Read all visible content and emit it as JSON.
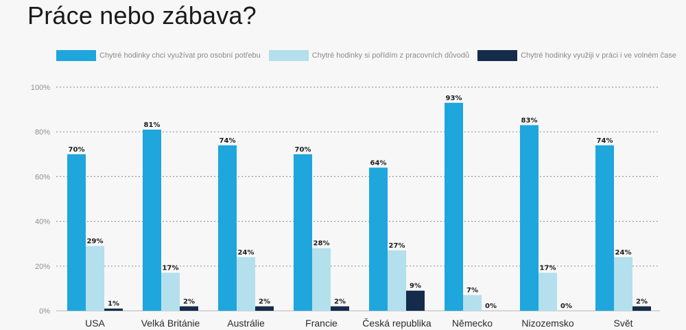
{
  "chart_data": {
    "type": "bar",
    "title": "Práce nebo zábava?",
    "categories": [
      "USA",
      "Velká Británie",
      "Austrálie",
      "Francie",
      "Česká republika",
      "Německo",
      "Nizozemsko",
      "Svět"
    ],
    "series": [
      {
        "name": "Chytré hodinky chci využívat pro osobní potřebu",
        "color": "#1ea6dd",
        "values": [
          70,
          81,
          74,
          70,
          64,
          93,
          83,
          74
        ]
      },
      {
        "name": "Chytré hodinky si pořídím z pracovních důvodů",
        "color": "#b4dfed",
        "values": [
          29,
          17,
          24,
          28,
          27,
          7,
          17,
          24
        ]
      },
      {
        "name": "Chytré hodinky využiji v práci i ve volném čase",
        "color": "#152b4a",
        "values": [
          1,
          2,
          2,
          2,
          9,
          0,
          0,
          2
        ]
      }
    ],
    "y_ticks": [
      "0%",
      "20%",
      "40%",
      "60%",
      "80%",
      "100%"
    ],
    "ylim": [
      0,
      100
    ],
    "value_suffix": "%",
    "grid": true,
    "legend_position": "top"
  }
}
